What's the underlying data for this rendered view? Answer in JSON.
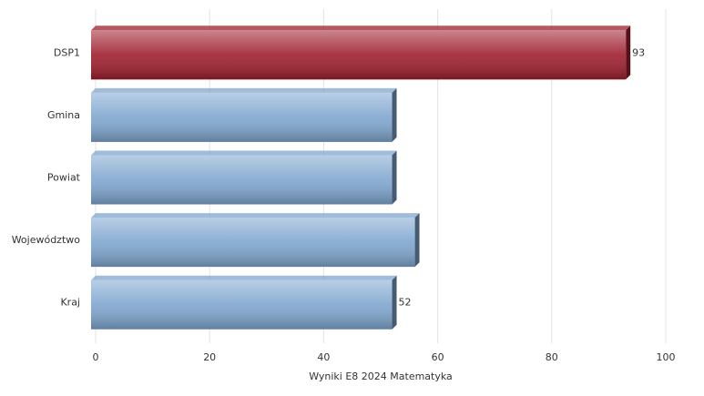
{
  "chart_data": {
    "type": "hbar",
    "x_label": "Wyniki E8 2024 Matematyka",
    "categories": [
      "DSP1",
      "Gmina",
      "Powiat",
      "Województwo",
      "Kraj"
    ],
    "values": [
      93,
      52,
      52,
      56,
      52
    ],
    "value_labels": [
      "93",
      null,
      null,
      null,
      "52"
    ],
    "colors": [
      "#9e1f2e",
      "#7fa6cf",
      "#7fa6cf",
      "#7fa6cf",
      "#7fa6cf"
    ],
    "xlim": [
      0,
      100
    ],
    "xticks": [
      0,
      20,
      40,
      60,
      80,
      100
    ],
    "grid": true
  }
}
